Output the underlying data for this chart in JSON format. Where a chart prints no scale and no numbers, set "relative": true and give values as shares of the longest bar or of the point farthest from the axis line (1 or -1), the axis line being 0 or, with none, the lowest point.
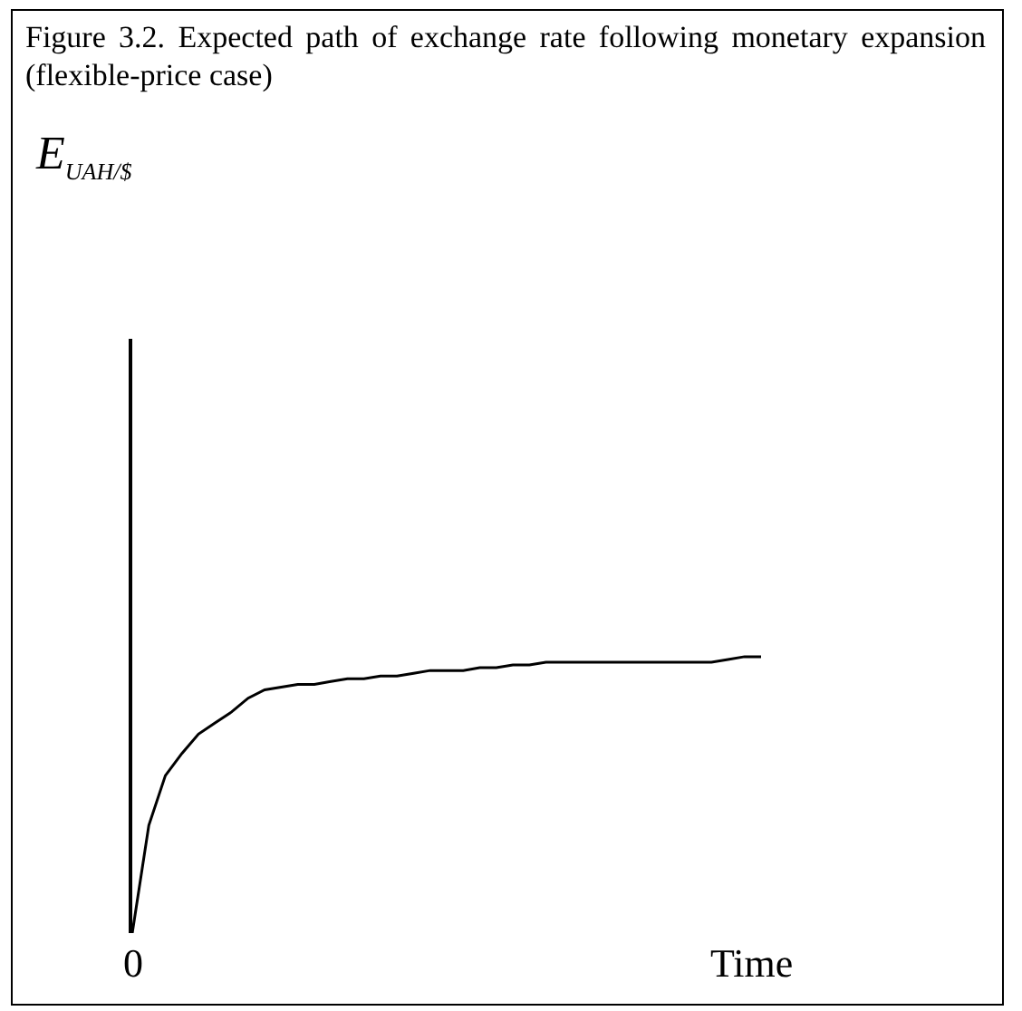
{
  "chart_data": {
    "type": "line",
    "title": "Figure 3.2. Expected path of exchange rate following monetary expansion (flexible-price case)",
    "xlabel": "Time",
    "relative": true,
    "annotations": [
      "0",
      "E$_{UAH/$}$"
    ],
    "categories": [
      null,
      null,
      null,
      null,
      null,
      null,
      null,
      null,
      null,
      null,
      null,
      null,
      null,
      null,
      null,
      null,
      null,
      null,
      null,
      null,
      null,
      null,
      null,
      null,
      null,
      null,
      null,
      null,
      null,
      null,
      null,
      null,
      null,
      null,
      null,
      null,
      null,
      null,
      null
    ],
    "series": [
      {
        "color": "#000000",
        "values": [
          0,
          0.39,
          0.57,
          0.65,
          0.72,
          0.76,
          0.8,
          0.85,
          0.88,
          0.89,
          0.9,
          0.9,
          0.91,
          0.92,
          0.92,
          0.93,
          0.93,
          0.94,
          0.95,
          0.95,
          0.95,
          0.96,
          0.96,
          0.97,
          0.97,
          0.98,
          0.98,
          0.98,
          0.98,
          0.98,
          0.98,
          0.98,
          0.98,
          0.98,
          0.98,
          0.98,
          0.99,
          1,
          1
        ]
      }
    ],
    "grid": false,
    "marker": "none",
    "line_style": "solid"
  }
}
